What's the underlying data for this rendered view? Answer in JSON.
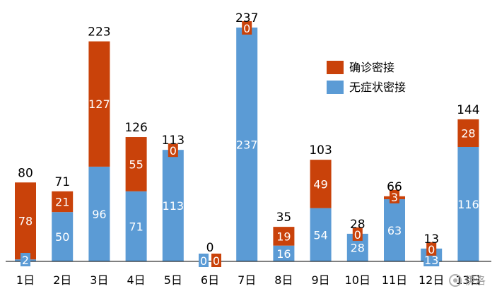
{
  "chart_data": {
    "type": "bar",
    "stacked": true,
    "categories": [
      "1日",
      "2日",
      "3日",
      "4日",
      "5日",
      "6日",
      "7日",
      "8日",
      "9日",
      "10日",
      "11日",
      "12日",
      "13日"
    ],
    "series": [
      {
        "name": "无症状密接",
        "color": "#5b9bd5",
        "values": [
          2,
          50,
          96,
          71,
          113,
          0,
          237,
          16,
          54,
          28,
          63,
          13,
          116
        ]
      },
      {
        "name": "确诊密接",
        "color": "#c9420a",
        "values": [
          78,
          21,
          127,
          55,
          0,
          0,
          0,
          19,
          49,
          0,
          3,
          0,
          28
        ]
      }
    ],
    "totals": [
      80,
      71,
      223,
      126,
      113,
      0,
      237,
      35,
      103,
      28,
      66,
      13,
      144
    ],
    "ylim": [
      0,
      250
    ],
    "legend_position": "top-right",
    "grid": false
  },
  "watermark": {
    "text": "伊洛",
    "icon": "wechat-icon"
  }
}
